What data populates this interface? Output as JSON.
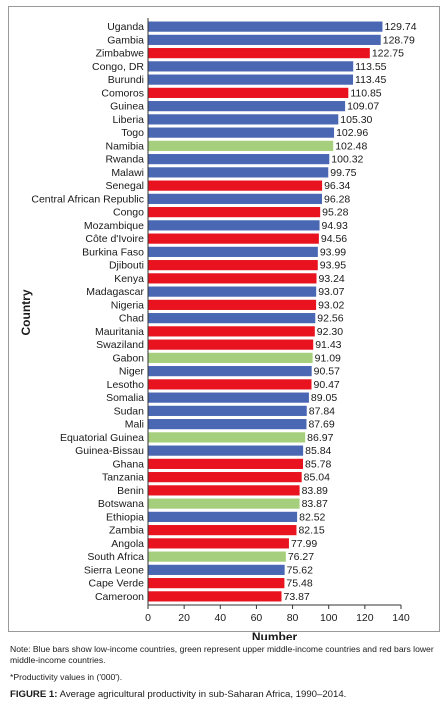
{
  "chart_data": {
    "type": "bar",
    "orientation": "horizontal",
    "xlabel": "Number",
    "ylabel": "Country",
    "xlim": [
      0,
      140
    ],
    "xticks": [
      0,
      20,
      40,
      60,
      80,
      100,
      120,
      140
    ],
    "grid": false,
    "colors": {
      "low": "#4a67b4",
      "upper_middle": "#a5cf7c",
      "lower_middle": "#e8131f"
    },
    "categories": [
      "Uganda",
      "Gambia",
      "Zimbabwe",
      "Congo, DR",
      "Burundi",
      "Comoros",
      "Guinea",
      "Liberia",
      "Togo",
      "Namibia",
      "Rwanda",
      "Malawi",
      "Senegal",
      "Central African Republic",
      "Congo",
      "Mozambique",
      "Côte d'Ivoire",
      "Burkina Faso",
      "Djibouti",
      "Kenya",
      "Madagascar",
      "Nigeria",
      "Chad",
      "Mauritania",
      "Swaziland",
      "Gabon",
      "Niger",
      "Lesotho",
      "Somalia",
      "Sudan",
      "Mali",
      "Equatorial Guinea",
      "Guinea-Bissau",
      "Ghana",
      "Tanzania",
      "Benin",
      "Botswana",
      "Ethiopia",
      "Zambia",
      "Angola",
      "South Africa",
      "Sierra Leone",
      "Cape Verde",
      "Cameroon"
    ],
    "values": [
      129.74,
      128.79,
      122.75,
      113.55,
      113.45,
      110.85,
      109.07,
      105.3,
      102.96,
      102.48,
      100.32,
      99.75,
      96.34,
      96.28,
      95.28,
      94.93,
      94.56,
      93.99,
      93.95,
      93.24,
      93.07,
      93.02,
      92.56,
      92.3,
      91.43,
      91.09,
      90.57,
      90.47,
      89.05,
      87.84,
      87.69,
      86.97,
      85.84,
      85.78,
      85.04,
      83.89,
      83.87,
      82.52,
      82.15,
      77.99,
      76.27,
      75.62,
      75.48,
      73.87
    ],
    "value_labels": [
      "129.74",
      "128.79",
      "122.75",
      "113.55",
      "113.45",
      "110.85",
      "109.07",
      "105.30",
      "102.96",
      "102.48",
      "100.32",
      "99.75",
      "96.34",
      "96.28",
      "95.28",
      "94.93",
      "94.56",
      "93.99",
      "93.95",
      "93.24",
      "93.07",
      "93.02",
      "92.56",
      "92.30",
      "91.43",
      "91.09",
      "90.57",
      "90.47",
      "89.05",
      "87.84",
      "87.69",
      "86.97",
      "85.84",
      "85.78",
      "85.04",
      "83.89",
      "83.87",
      "82.52",
      "82.15",
      "77.99",
      "76.27",
      "75.62",
      "75.48",
      "73.87"
    ],
    "income_groups": [
      "low",
      "low",
      "lower_middle",
      "low",
      "low",
      "lower_middle",
      "low",
      "low",
      "low",
      "upper_middle",
      "low",
      "low",
      "lower_middle",
      "low",
      "lower_middle",
      "low",
      "lower_middle",
      "low",
      "lower_middle",
      "lower_middle",
      "low",
      "lower_middle",
      "low",
      "lower_middle",
      "lower_middle",
      "upper_middle",
      "low",
      "lower_middle",
      "low",
      "low",
      "low",
      "upper_middle",
      "low",
      "lower_middle",
      "lower_middle",
      "lower_middle",
      "upper_middle",
      "low",
      "lower_middle",
      "lower_middle",
      "upper_middle",
      "low",
      "lower_middle",
      "lower_middle"
    ]
  },
  "notes": {
    "note": "Note: Blue bars show low-income countries, green represent upper middle-income countries and red bars lower middle-income countries.",
    "footnote": "*Productivity values in ('000').",
    "caption_label": "FIGURE 1:",
    "caption_text": "Average agricultural productivity in sub-Saharan Africa, 1990–2014."
  }
}
